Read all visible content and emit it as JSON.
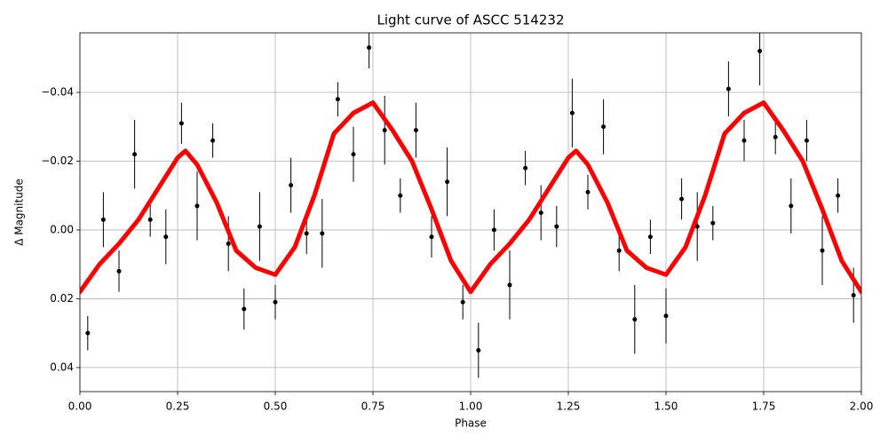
{
  "chart_data": {
    "type": "scatter",
    "title": "Light curve of ASCC 514232",
    "x_label": "Phase",
    "y_label": "Δ Magnitude",
    "xlim": [
      0,
      2
    ],
    "ylim": [
      0.047,
      -0.0573
    ],
    "grid": true,
    "xticks": [
      {
        "value": 0,
        "label": "0.00"
      },
      {
        "value": 0.25,
        "label": "0.25"
      },
      {
        "value": 0.5,
        "label": "0.50"
      },
      {
        "value": 0.75,
        "label": "0.75"
      },
      {
        "value": 1,
        "label": "1.00"
      },
      {
        "value": 1.25,
        "label": "1.25"
      },
      {
        "value": 1.5,
        "label": "1.50"
      },
      {
        "value": 1.75,
        "label": "1.75"
      },
      {
        "value": 2,
        "label": "2.00"
      }
    ],
    "yticks": [
      {
        "value": -0.04,
        "label": "−0.04"
      },
      {
        "value": -0.02,
        "label": "−0.02"
      },
      {
        "value": 0,
        "label": "0.00"
      },
      {
        "value": 0.02,
        "label": "0.02"
      },
      {
        "value": 0.04,
        "label": "0.04"
      }
    ],
    "series": [
      {
        "color": "#000000",
        "x": [
          0.02,
          0.06,
          0.1,
          0.14,
          0.18,
          0.22,
          0.26,
          0.3,
          0.34,
          0.38,
          0.42,
          0.46,
          0.5,
          0.54,
          0.58,
          0.62,
          0.66,
          0.7,
          0.74,
          0.78,
          0.82,
          0.86,
          0.9,
          0.94,
          0.98,
          1.02,
          1.06,
          1.1,
          1.14,
          1.18,
          1.22,
          1.26,
          1.3,
          1.34,
          1.38,
          1.42,
          1.46,
          1.5,
          1.54,
          1.58,
          1.62,
          1.66,
          1.7,
          1.74,
          1.78,
          1.82,
          1.86,
          1.9,
          1.94,
          1.98
        ],
        "values": [
          0.03,
          -0.003,
          0.012,
          -0.022,
          -0.003,
          0.002,
          -0.031,
          -0.007,
          -0.026,
          0.004,
          0.023,
          -0.001,
          0.021,
          -0.013,
          0.001,
          0.001,
          -0.038,
          -0.022,
          -0.053,
          -0.029,
          -0.01,
          -0.029,
          0.002,
          -0.014,
          0.021,
          0.035,
          0.0,
          0.016,
          -0.018,
          -0.005,
          -0.001,
          -0.034,
          -0.011,
          -0.03,
          0.006,
          0.026,
          0.002,
          0.025,
          -0.009,
          -0.001,
          -0.002,
          -0.041,
          -0.026,
          -0.052,
          -0.027,
          -0.007,
          -0.026,
          0.006,
          -0.01,
          0.019
        ],
        "errors": [
          0.005,
          0.008,
          0.006,
          0.01,
          0.005,
          0.008,
          0.006,
          0.01,
          0.005,
          0.008,
          0.006,
          0.01,
          0.005,
          0.008,
          0.006,
          0.01,
          0.005,
          0.008,
          0.006,
          0.01,
          0.005,
          0.008,
          0.006,
          0.01,
          0.005,
          0.008,
          0.006,
          0.01,
          0.005,
          0.008,
          0.006,
          0.01,
          0.005,
          0.008,
          0.006,
          0.01,
          0.005,
          0.008,
          0.006,
          0.01,
          0.005,
          0.008,
          0.006,
          0.01,
          0.005,
          0.008,
          0.006,
          0.01,
          0.005,
          0.008
        ]
      },
      {
        "color": "#ff0000",
        "x": [
          0,
          0.05,
          0.1,
          0.15,
          0.2,
          0.25,
          0.27,
          0.3,
          0.35,
          0.4,
          0.45,
          0.5,
          0.55,
          0.6,
          0.65,
          0.7,
          0.75,
          0.8,
          0.85,
          0.9,
          0.95,
          1,
          1.05,
          1.1,
          1.15,
          1.2,
          1.25,
          1.27,
          1.3,
          1.35,
          1.4,
          1.45,
          1.5,
          1.55,
          1.6,
          1.65,
          1.7,
          1.75,
          1.8,
          1.85,
          1.9,
          1.95,
          2
        ],
        "values": [
          0.018,
          0.01,
          0.004,
          -0.003,
          -0.012,
          -0.021,
          -0.023,
          -0.019,
          -0.008,
          0.006,
          0.011,
          0.013,
          0.005,
          -0.01,
          -0.028,
          -0.034,
          -0.037,
          -0.029,
          -0.02,
          -0.006,
          0.009,
          0.018,
          0.01,
          0.004,
          -0.003,
          -0.012,
          -0.021,
          -0.023,
          -0.019,
          -0.008,
          0.006,
          0.011,
          0.013,
          0.005,
          -0.01,
          -0.028,
          -0.034,
          -0.037,
          -0.029,
          -0.02,
          -0.006,
          0.009,
          0.018
        ]
      }
    ]
  }
}
